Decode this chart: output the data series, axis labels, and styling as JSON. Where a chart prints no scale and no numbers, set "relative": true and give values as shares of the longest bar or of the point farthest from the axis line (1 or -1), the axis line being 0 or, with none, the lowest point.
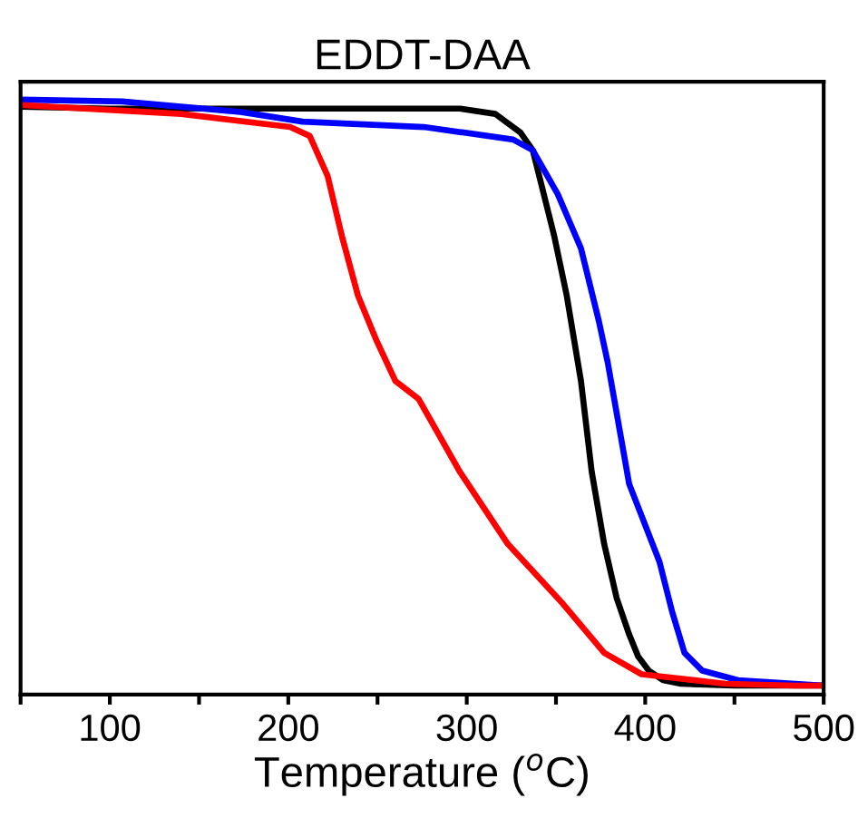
{
  "chart_data": {
    "type": "line",
    "title": "EDDT-DAA",
    "xlabel": "Temperature ($^{o}$C)",
    "relative": true,
    "grid": false,
    "legend": false,
    "marker": "none",
    "line_style": "solid",
    "xlim": [
      50,
      500
    ],
    "xticks": [
      {
        "value": 50,
        "label": null
      },
      100,
      {
        "value": 150,
        "label": null
      },
      200,
      {
        "value": 250,
        "label": null
      },
      300,
      {
        "value": 350,
        "label": null
      },
      400,
      {
        "value": 450,
        "label": null
      },
      500
    ],
    "tick_labels": "x",
    "series": [
      {
        "color": "#000000",
        "x": [
          50,
          100,
          200,
          296,
          316,
          330,
          337,
          349,
          356,
          364,
          370,
          377,
          384,
          391,
          396,
          402,
          410,
          420,
          450,
          500
        ],
        "values": [
          0.988,
          0.985,
          0.985,
          0.985,
          0.976,
          0.945,
          0.915,
          0.771,
          0.671,
          0.527,
          0.375,
          0.253,
          0.162,
          0.101,
          0.064,
          0.04,
          0.024,
          0.018,
          0.015,
          0.015
        ]
      },
      {
        "color": "#0000ff",
        "x": [
          50,
          107,
          174,
          208,
          276,
          326,
          337,
          351,
          364,
          374,
          379,
          391,
          408,
          415,
          422,
          432,
          452,
          500
        ],
        "values": [
          1,
          0.997,
          0.979,
          0.963,
          0.954,
          0.933,
          0.915,
          0.841,
          0.75,
          0.628,
          0.558,
          0.354,
          0.223,
          0.14,
          0.07,
          0.04,
          0.024,
          0.015
        ]
      },
      {
        "color": "#ff0000",
        "x": [
          50,
          140,
          201,
          212,
          222,
          230,
          239,
          249,
          260,
          273,
          296,
          323,
          354,
          377,
          398,
          445,
          484,
          500
        ],
        "values": [
          0.991,
          0.976,
          0.954,
          0.939,
          0.872,
          0.771,
          0.671,
          0.598,
          0.527,
          0.497,
          0.375,
          0.253,
          0.152,
          0.07,
          0.034,
          0.018,
          0.015,
          0.015
        ]
      }
    ]
  }
}
